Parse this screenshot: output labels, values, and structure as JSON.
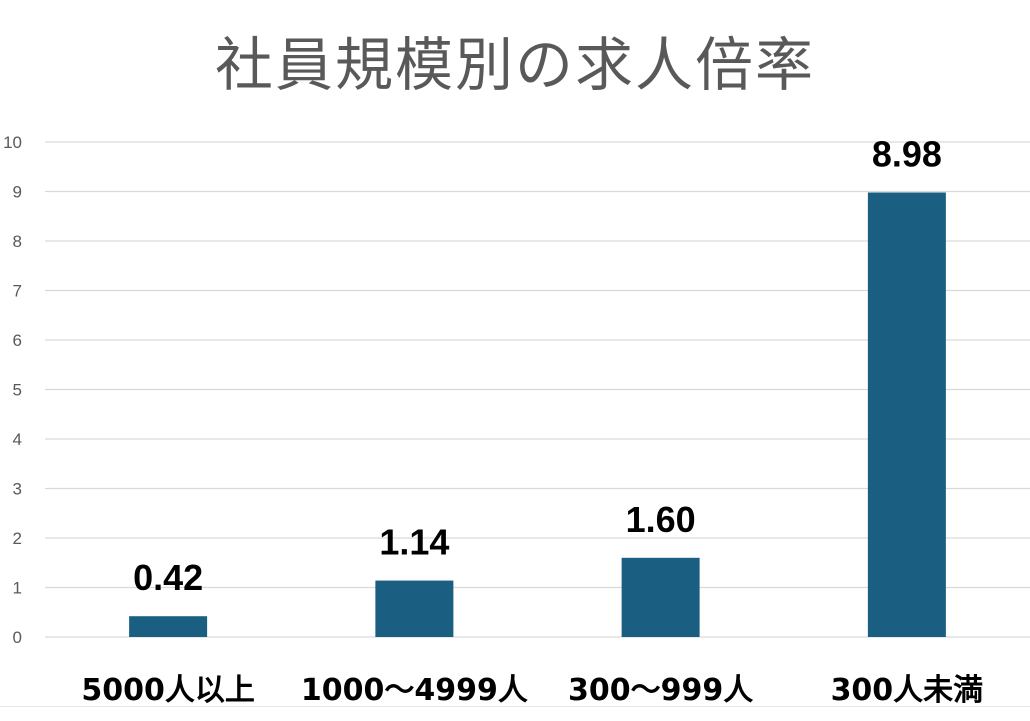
{
  "chart_data": {
    "type": "bar",
    "title": "社員規模別の求人倍率",
    "categories": [
      "5000人以上",
      "1000～4999人",
      "300～999人",
      "300人未満"
    ],
    "values": [
      0.42,
      1.14,
      1.6,
      8.98
    ],
    "data_labels": [
      "0.42",
      "1.14",
      "1.60",
      "8.98"
    ],
    "ylim": [
      0,
      10
    ],
    "yticks": [
      "0",
      "1",
      "2",
      "3",
      "4",
      "5",
      "6",
      "7",
      "8",
      "9",
      "10"
    ],
    "grid": true,
    "bar_color": "#1a5f82"
  }
}
